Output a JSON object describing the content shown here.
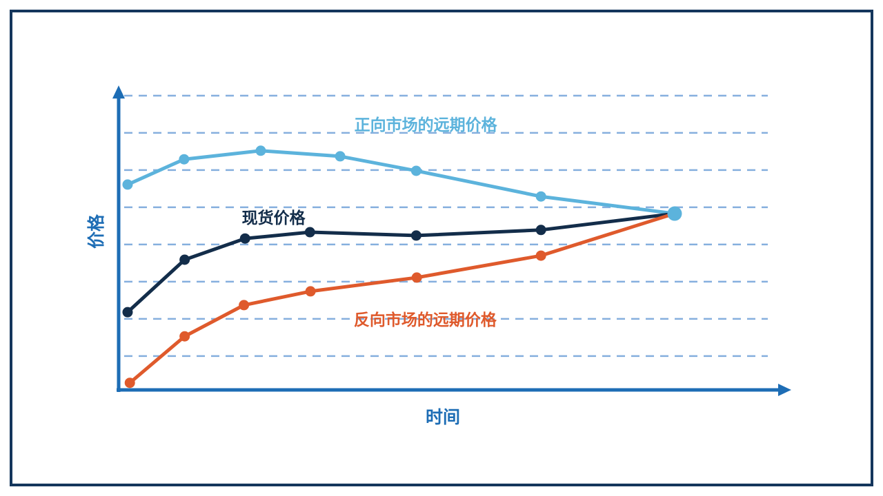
{
  "page": {
    "background": "#FFFFFF",
    "border_color": "#14365C"
  },
  "colors": {
    "axis": "#1D6DB5",
    "grid": "#85AFDE",
    "border": "#14365C"
  },
  "chart_data": {
    "type": "line",
    "title": "",
    "xlabel": "时间",
    "ylabel": "价格",
    "x_range": [
      0,
      12
    ],
    "y_range": [
      0,
      8.13
    ],
    "grid": "horizontal dashed lines only",
    "gridlines_y": [
      0.91,
      1.91,
      2.91,
      3.91,
      4.91,
      5.91,
      6.91,
      7.91
    ],
    "axes_style": "arrow-tipped axes, no numeric ticks (qualitative diagram)",
    "legend_position": "inline annotations next to each curve",
    "units_note": "relative units: 1 p-unit = one gridline spacing; curves converge at final time point",
    "series": [
      {
        "name": "正向市场的远期价格",
        "color": "#5CB3DC",
        "marker": "circle",
        "points": [
          {
            "t": 0.16,
            "p": 5.52
          },
          {
            "t": 1.17,
            "p": 6.2
          },
          {
            "t": 2.54,
            "p": 6.43
          },
          {
            "t": 3.96,
            "p": 6.28
          },
          {
            "t": 5.32,
            "p": 5.89
          },
          {
            "t": 7.55,
            "p": 5.2
          },
          {
            "t": 9.94,
            "p": 4.74
          }
        ]
      },
      {
        "name": "现货价格",
        "color": "#132D4A",
        "marker": "circle",
        "points": [
          {
            "t": 0.16,
            "p": 2.09
          },
          {
            "t": 1.18,
            "p": 3.5
          },
          {
            "t": 2.26,
            "p": 4.07
          },
          {
            "t": 3.42,
            "p": 4.24
          },
          {
            "t": 5.32,
            "p": 4.15
          },
          {
            "t": 7.55,
            "p": 4.3
          },
          {
            "t": 9.94,
            "p": 4.74
          }
        ]
      },
      {
        "name": "反向市场的远期价格",
        "color": "#DF5A2C",
        "marker": "circle",
        "points": [
          {
            "t": 0.2,
            "p": 0.19
          },
          {
            "t": 1.18,
            "p": 1.44
          },
          {
            "t": 2.24,
            "p": 2.28
          },
          {
            "t": 3.43,
            "p": 2.65
          },
          {
            "t": 5.33,
            "p": 3.02
          },
          {
            "t": 7.55,
            "p": 3.61
          },
          {
            "t": 9.94,
            "p": 4.74
          }
        ]
      }
    ],
    "convergence_point": {
      "t": 9.94,
      "p": 4.74,
      "color": "#5CB3DC"
    },
    "annotations": [
      {
        "text": "正向市场的远期价格",
        "color": "#5CB3DC",
        "t": 5.49,
        "p": 7.13
      },
      {
        "text": "现货价格",
        "color": "#132D4A",
        "t": 2.77,
        "p": 4.63
      },
      {
        "text": "反向市场的远期价格",
        "color": "#DF5A2C",
        "t": 5.48,
        "p": 1.89
      }
    ]
  }
}
